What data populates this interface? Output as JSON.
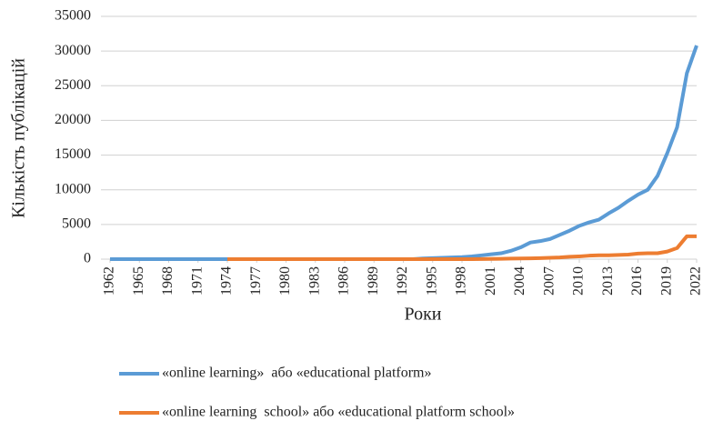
{
  "chart_data": {
    "type": "line",
    "xlabel": "Роки",
    "ylabel": "Кількість публікацій",
    "x": [
      1962,
      1963,
      1964,
      1965,
      1966,
      1967,
      1968,
      1969,
      1970,
      1971,
      1972,
      1973,
      1974,
      1975,
      1976,
      1977,
      1978,
      1979,
      1980,
      1981,
      1982,
      1983,
      1984,
      1985,
      1986,
      1987,
      1988,
      1989,
      1990,
      1991,
      1992,
      1993,
      1994,
      1995,
      1996,
      1997,
      1998,
      1999,
      2000,
      2001,
      2002,
      2003,
      2004,
      2005,
      2006,
      2007,
      2008,
      2009,
      2010,
      2011,
      2012,
      2013,
      2014,
      2015,
      2016,
      2017,
      2018,
      2019,
      2020,
      2021,
      2022
    ],
    "xlim": [
      1962,
      2022
    ],
    "xticks": [
      1962,
      1965,
      1968,
      1971,
      1974,
      1977,
      1980,
      1983,
      1986,
      1989,
      1992,
      1995,
      1998,
      2001,
      2004,
      2007,
      2010,
      2013,
      2016,
      2019,
      2022
    ],
    "ylim": [
      0,
      35000
    ],
    "yticks": [
      0,
      5000,
      10000,
      15000,
      20000,
      25000,
      30000,
      35000
    ],
    "grid": true,
    "legend": "bottom",
    "series": [
      {
        "name": "«online learning»  або «educational platform»",
        "color": "#5b9bd5",
        "values": [
          0,
          0,
          0,
          0,
          0,
          0,
          0,
          0,
          0,
          0,
          0,
          0,
          0,
          0,
          0,
          0,
          0,
          0,
          0,
          0,
          0,
          0,
          0,
          0,
          0,
          0,
          0,
          0,
          0,
          0,
          0,
          0,
          100,
          150,
          200,
          250,
          300,
          400,
          550,
          700,
          850,
          1200,
          1700,
          2400,
          2600,
          2900,
          3500,
          4100,
          4800,
          5300,
          5700,
          6600,
          7400,
          8400,
          9300,
          10000,
          12000,
          15300,
          19000,
          26800,
          30800
        ]
      },
      {
        "name": "«online learning  school» або «educational platform school»",
        "color": "#ed7d31",
        "values": [
          null,
          null,
          null,
          null,
          null,
          null,
          null,
          null,
          null,
          null,
          null,
          null,
          0,
          0,
          0,
          0,
          0,
          0,
          0,
          0,
          0,
          0,
          0,
          0,
          0,
          0,
          0,
          0,
          0,
          0,
          0,
          0,
          0,
          0,
          0,
          0,
          0,
          0,
          20,
          30,
          50,
          80,
          100,
          120,
          150,
          200,
          250,
          350,
          400,
          500,
          550,
          550,
          600,
          650,
          800,
          850,
          850,
          1100,
          1600,
          3300,
          3300
        ]
      }
    ]
  }
}
